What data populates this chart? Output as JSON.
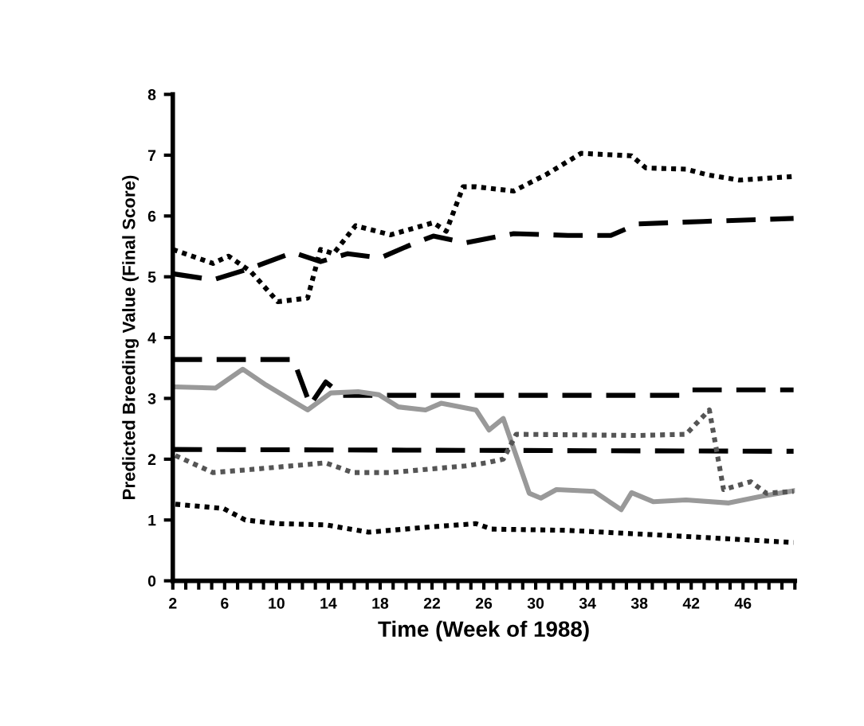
{
  "chart_data": {
    "type": "line",
    "xlabel": "Time (Week of 1988)",
    "ylabel": "Predicted Breeding Value (Final Score)",
    "xlim": [
      2,
      50
    ],
    "ylim": [
      0,
      8
    ],
    "yticks": [
      0,
      1,
      2,
      3,
      4,
      5,
      6,
      7,
      8
    ],
    "xticks": [
      2,
      {
        "value": 3,
        "label": null
      },
      {
        "value": 4,
        "label": null
      },
      {
        "value": 5,
        "label": null
      },
      6,
      {
        "value": 7,
        "label": null
      },
      {
        "value": 8,
        "label": null
      },
      {
        "value": 9,
        "label": null
      },
      10,
      {
        "value": 11,
        "label": null
      },
      {
        "value": 12,
        "label": null
      },
      {
        "value": 13,
        "label": null
      },
      14,
      {
        "value": 15,
        "label": null
      },
      {
        "value": 16,
        "label": null
      },
      {
        "value": 17,
        "label": null
      },
      18,
      {
        "value": 19,
        "label": null
      },
      {
        "value": 20,
        "label": null
      },
      {
        "value": 21,
        "label": null
      },
      22,
      {
        "value": 23,
        "label": null
      },
      {
        "value": 24,
        "label": null
      },
      {
        "value": 25,
        "label": null
      },
      26,
      {
        "value": 27,
        "label": null
      },
      {
        "value": 28,
        "label": null
      },
      {
        "value": 29,
        "label": null
      },
      30,
      {
        "value": 31,
        "label": null
      },
      {
        "value": 32,
        "label": null
      },
      {
        "value": 33,
        "label": null
      },
      34,
      {
        "value": 35,
        "label": null
      },
      {
        "value": 36,
        "label": null
      },
      {
        "value": 37,
        "label": null
      },
      38,
      {
        "value": 39,
        "label": null
      },
      {
        "value": 40,
        "label": null
      },
      {
        "value": 41,
        "label": null
      },
      42,
      {
        "value": 43,
        "label": null
      },
      {
        "value": 44,
        "label": null
      },
      {
        "value": 45,
        "label": null
      },
      46,
      {
        "value": 47,
        "label": null
      },
      {
        "value": 48,
        "label": null
      },
      {
        "value": 49,
        "label": null
      },
      {
        "value": 50,
        "label": null
      }
    ],
    "grid": false,
    "legend": false,
    "marker": "none",
    "series": [
      {
        "color": "#000000",
        "line_style": "dotted",
        "x": [
          2,
          5.1,
          6.3,
          8,
          10.1,
          12.4,
          13.4,
          14.4,
          16.1,
          18.8,
          22.1,
          23.1,
          24.4,
          25.4,
          28.3,
          30.8,
          33.5,
          37.4,
          38.5,
          41.6,
          43.2,
          45.7,
          49.9
        ],
        "values": [
          5.45,
          5.22,
          5.34,
          5.09,
          4.59,
          4.65,
          5.45,
          5.38,
          5.84,
          5.69,
          5.89,
          5.75,
          6.48,
          6.48,
          6.41,
          6.68,
          7.03,
          6.99,
          6.79,
          6.77,
          6.68,
          6.59,
          6.65
        ]
      },
      {
        "color": "#000000",
        "line_style": "dashed",
        "x": [
          2,
          5.1,
          8,
          11.3,
          13.4,
          15.5,
          18,
          20.4,
          22.1,
          24.6,
          28.3,
          32.5,
          35.8,
          37.9,
          42.9,
          49.9
        ],
        "values": [
          5.05,
          4.95,
          5.14,
          5.4,
          5.25,
          5.38,
          5.31,
          5.53,
          5.67,
          5.56,
          5.71,
          5.68,
          5.68,
          5.87,
          5.91,
          5.96
        ]
      },
      {
        "color": "#000000",
        "line_style": "dashed",
        "x": [
          2,
          11.3,
          12.6,
          13.8,
          15.1,
          41.2,
          42,
          49.9
        ],
        "values": [
          3.64,
          3.64,
          2.89,
          3.27,
          3.05,
          3.05,
          3.14,
          3.14
        ]
      },
      {
        "color": "#000000",
        "line_style": "dashed",
        "x": [
          2,
          49.9
        ],
        "values": [
          2.16,
          2.13
        ]
      },
      {
        "color": "#999999",
        "line_style": "solid",
        "x": [
          2.2,
          5.3,
          7.4,
          9.2,
          12.4,
          14.2,
          16.3,
          17.9,
          19.4,
          21.5,
          22.7,
          25.4,
          26.4,
          27.5,
          29.5,
          30.4,
          31.6,
          34.5,
          36.6,
          37.4,
          39.1,
          41.6,
          44.9,
          47.4,
          49.9
        ],
        "values": [
          3.19,
          3.17,
          3.48,
          3.22,
          2.81,
          3.09,
          3.11,
          3.06,
          2.86,
          2.81,
          2.92,
          2.81,
          2.48,
          2.67,
          1.44,
          1.36,
          1.5,
          1.47,
          1.17,
          1.45,
          1.3,
          1.33,
          1.28,
          1.39,
          1.48
        ]
      },
      {
        "color": "#555555",
        "line_style": "dotted",
        "x": [
          2.2,
          5.1,
          8,
          13.8,
          15.9,
          18.8,
          24.6,
          26.2,
          27.5,
          28.5,
          37.8,
          41.6,
          43.4,
          44.5,
          46.6,
          47.8,
          49.9
        ],
        "values": [
          2.06,
          1.78,
          1.83,
          1.94,
          1.78,
          1.78,
          1.89,
          1.94,
          2.0,
          2.41,
          2.39,
          2.41,
          2.81,
          1.5,
          1.63,
          1.44,
          1.47
        ]
      },
      {
        "color": "#000000",
        "line_style": "dotted",
        "x": [
          2.2,
          5.9,
          7.6,
          10.1,
          13.8,
          17.1,
          22.1,
          25.4,
          26.6,
          32.4,
          40.7,
          49.9
        ],
        "values": [
          1.26,
          1.19,
          1.0,
          0.94,
          0.92,
          0.8,
          0.89,
          0.94,
          0.85,
          0.83,
          0.74,
          0.63
        ]
      }
    ]
  }
}
